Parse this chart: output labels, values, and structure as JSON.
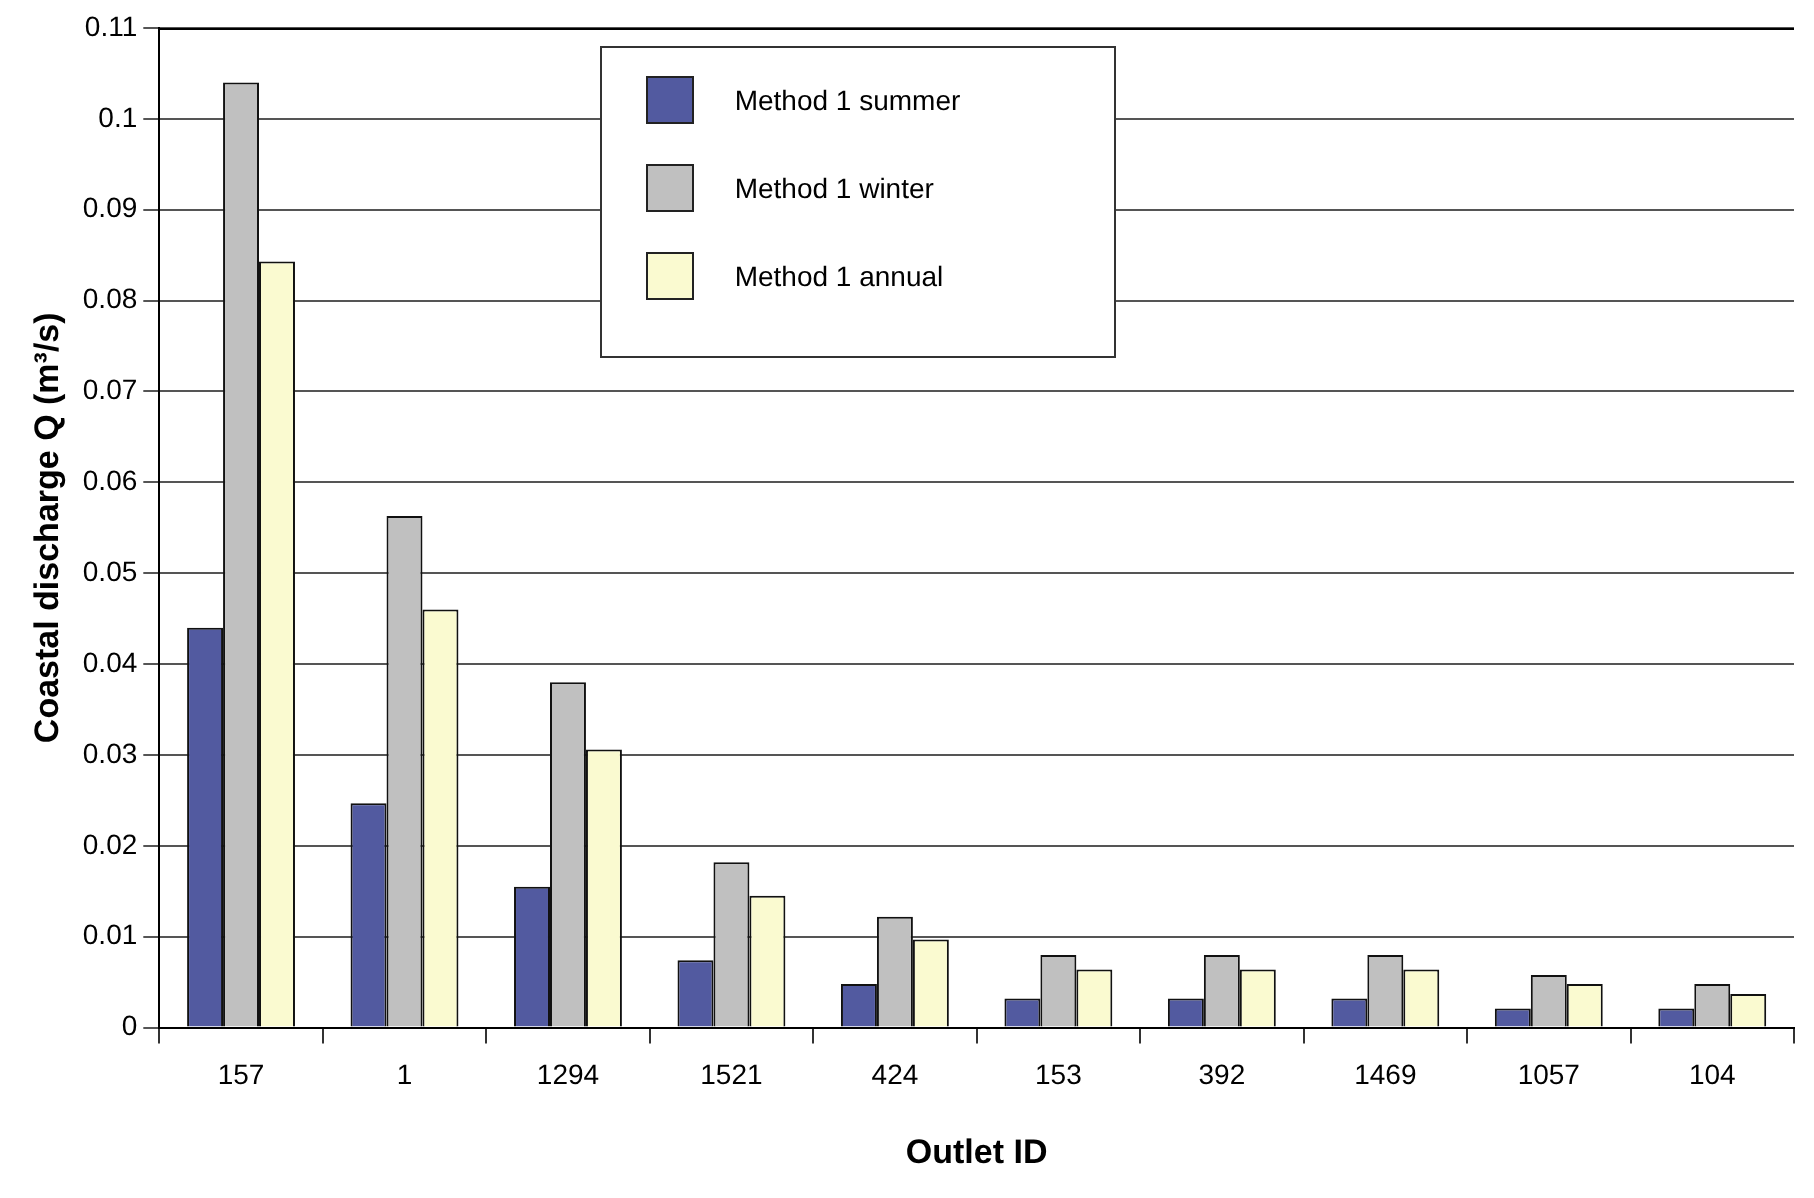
{
  "chart_data": {
    "type": "bar",
    "xlabel": "Outlet ID",
    "ylabel": "Coastal discharge Q (m³/s)",
    "categories": [
      "157",
      "1",
      "1294",
      "1521",
      "424",
      "153",
      "392",
      "1469",
      "1057",
      "104"
    ],
    "series": [
      {
        "name": "Method 1 summer",
        "color": "#525aa0",
        "values": [
          0.044,
          0.0247,
          0.0155,
          0.0074,
          0.0048,
          0.0032,
          0.0032,
          0.0032,
          0.0021,
          0.0021
        ]
      },
      {
        "name": "Method 1 winter",
        "color": "#c0c0c0",
        "values": [
          0.104,
          0.0563,
          0.038,
          0.0182,
          0.0122,
          0.008,
          0.008,
          0.008,
          0.0058,
          0.0048
        ]
      },
      {
        "name": "Method 1 annual",
        "color": "#fafad0",
        "values": [
          0.0843,
          0.046,
          0.0306,
          0.0145,
          0.0097,
          0.0064,
          0.0064,
          0.0064,
          0.0048,
          0.0037
        ]
      }
    ],
    "ylim": [
      0,
      0.11
    ],
    "yticks": [
      0,
      0.01,
      0.02,
      0.03,
      0.04,
      0.05,
      0.06,
      0.07,
      0.08,
      0.09,
      0.1,
      0.11
    ],
    "grid": "y",
    "legend": "top"
  }
}
